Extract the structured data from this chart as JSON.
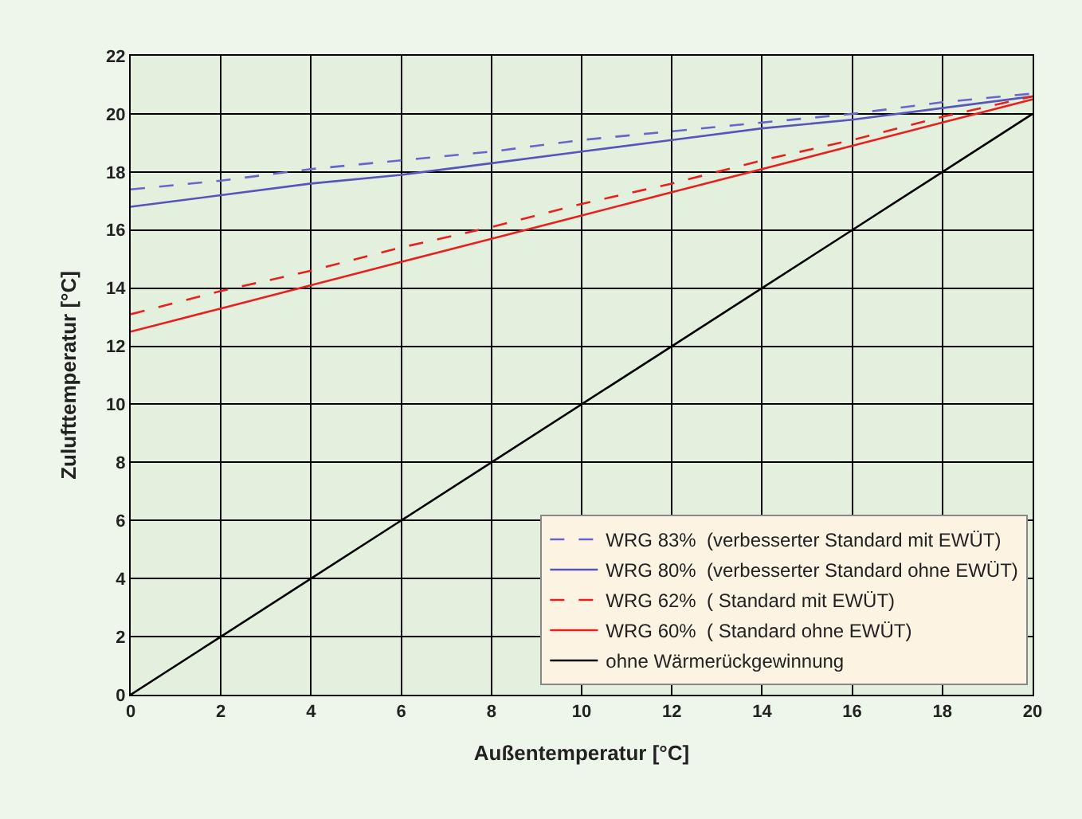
{
  "chart_data": {
    "type": "line",
    "xlabel": "Außentemperatur [°C]",
    "ylabel": "Zulufttemperatur [°C]",
    "xlim": [
      0,
      20
    ],
    "xticks": [
      0,
      2,
      4,
      6,
      8,
      10,
      12,
      14,
      16,
      18,
      20
    ],
    "ylim": [
      0,
      22
    ],
    "yticks": [
      0,
      2,
      4,
      6,
      8,
      10,
      12,
      14,
      16,
      18,
      20,
      22
    ],
    "grid": true,
    "legend": "bottom right",
    "marker": "none",
    "x": [
      0,
      2,
      4,
      6,
      8,
      10,
      12,
      14,
      16,
      18,
      20
    ],
    "series": [
      {
        "name": "WRG 83%  (verbesserter Standard mit EWÜT)",
        "color": "#6666cc",
        "line_style": "dashed",
        "values": [
          17.4,
          17.7,
          18.1,
          18.4,
          18.7,
          19.1,
          19.4,
          19.7,
          20.0,
          20.4,
          20.7
        ]
      },
      {
        "name": "WRG 80%  (verbesserter Standard ohne EWÜT)",
        "color": "#5555bb",
        "line_style": "solid",
        "values": [
          16.8,
          17.2,
          17.6,
          17.9,
          18.3,
          18.7,
          19.1,
          19.5,
          19.8,
          20.2,
          20.6
        ]
      },
      {
        "name": "WRG 62%  ( Standard mit EWÜT)",
        "color": "#e8201e",
        "line_style": "dashed",
        "values": [
          13.1,
          13.9,
          14.6,
          15.4,
          16.1,
          16.9,
          17.6,
          18.4,
          19.1,
          19.9,
          20.6
        ]
      },
      {
        "name": "WRG 60%  ( Standard ohne EWÜT)",
        "color": "#e8201e",
        "line_style": "solid",
        "values": [
          12.5,
          13.3,
          14.1,
          14.9,
          15.7,
          16.5,
          17.3,
          18.1,
          18.9,
          19.7,
          20.5
        ]
      },
      {
        "name": "ohne Wärmerückgewinnung",
        "color": "#000000",
        "line_style": "solid",
        "values": [
          0,
          2,
          4,
          6,
          8,
          10,
          12,
          14,
          16,
          18,
          20
        ]
      }
    ]
  }
}
